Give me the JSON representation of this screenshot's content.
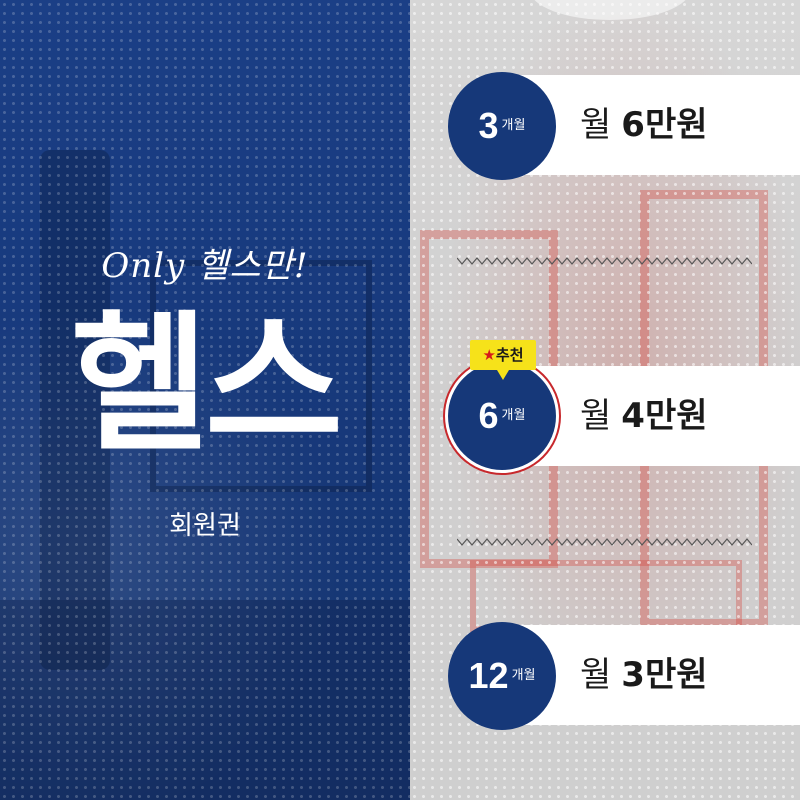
{
  "left": {
    "tagline": "Only 헬스만!",
    "title": "헬스",
    "subtitle": "회원권"
  },
  "plans": [
    {
      "months": "3",
      "unit": "개월",
      "label": "월",
      "price": "6만원"
    },
    {
      "months": "6",
      "unit": "개월",
      "label": "월",
      "price": "4만원",
      "tag": "추천",
      "tag_icon": "star-icon"
    },
    {
      "months": "12",
      "unit": "개월",
      "label": "월",
      "price": "3만원"
    }
  ],
  "colors": {
    "navy": "#163879",
    "left_panel": "#1b3f86",
    "badge_tag": "#f6e21a",
    "highlight_ring": "#c7282c"
  }
}
